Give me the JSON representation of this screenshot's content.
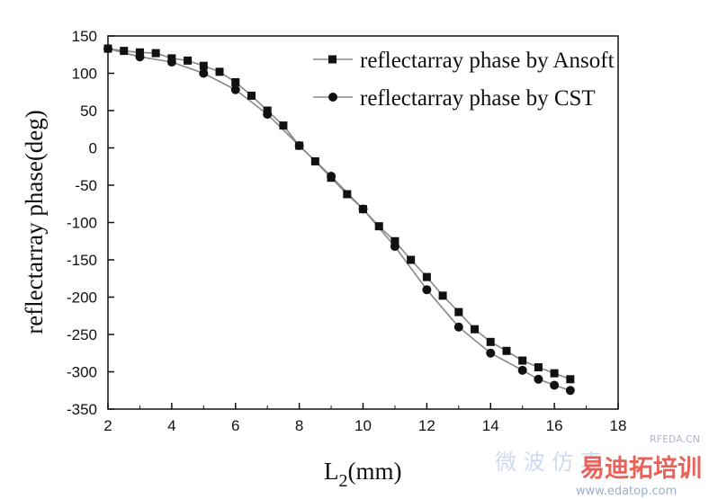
{
  "chart_data": {
    "type": "line",
    "title": "",
    "xlabel_main": "L",
    "xlabel_sub": "2",
    "xlabel_unit": "(mm)",
    "ylabel": "reflectarray phase(deg)",
    "xlim": [
      2,
      18
    ],
    "ylim": [
      -350,
      150
    ],
    "xticks": [
      "2",
      "4",
      "6",
      "8",
      "10",
      "12",
      "14",
      "16",
      "18"
    ],
    "yticks": [
      "150",
      "100",
      "50",
      "0",
      "-50",
      "-100",
      "-150",
      "-200",
      "-250",
      "-300",
      "-350"
    ],
    "grid": false,
    "legend_position": "top-right",
    "series": [
      {
        "name": "reflectarray phase by Ansoft",
        "marker": "square",
        "x": [
          2,
          2.5,
          3,
          3.5,
          4,
          4.5,
          5,
          5.5,
          6,
          6.5,
          7,
          7.5,
          8,
          8.5,
          9,
          9.5,
          10,
          10.5,
          11,
          11.5,
          12,
          12.5,
          13,
          13.5,
          14,
          14.5,
          15,
          15.5,
          16,
          16.5
        ],
        "y": [
          133,
          130,
          128,
          127,
          120,
          117,
          110,
          102,
          88,
          70,
          50,
          30,
          3,
          -18,
          -40,
          -62,
          -82,
          -105,
          -125,
          -150,
          -173,
          -198,
          -220,
          -243,
          -260,
          -272,
          -285,
          -294,
          -302,
          -310
        ]
      },
      {
        "name": "reflectarray phase by CST",
        "marker": "circle",
        "x": [
          2,
          3,
          4,
          5,
          6,
          7,
          8,
          9,
          10,
          11,
          12,
          13,
          14,
          15,
          15.5,
          16,
          16.5
        ],
        "y": [
          133,
          122,
          115,
          100,
          78,
          45,
          3,
          -38,
          -82,
          -132,
          -190,
          -240,
          -275,
          -298,
          -310,
          -318,
          -325
        ]
      }
    ]
  },
  "watermark": {
    "site": "RFEDA.CN",
    "brand": "易迪拓培训",
    "url": "www.edatop.com",
    "faint_text": "微 波 仿 真"
  }
}
